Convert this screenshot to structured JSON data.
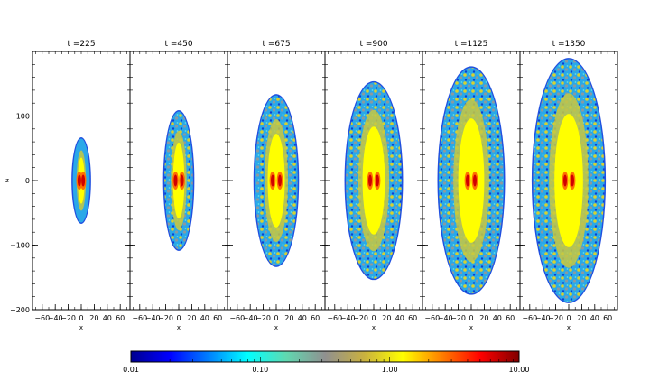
{
  "chart_data": {
    "type": "heatmap",
    "xlabel": "x",
    "ylabel": "z",
    "xlim": [
      -75,
      75
    ],
    "ylim": [
      -200,
      200
    ],
    "x_ticks": [
      "−60",
      "−40",
      "−20",
      "0",
      "20",
      "40",
      "60"
    ],
    "y_ticks": [
      "100",
      "0",
      "−100",
      "−200"
    ],
    "panels": [
      {
        "title": "t =225",
        "half_length": 65,
        "half_width": 13
      },
      {
        "title": "t =450",
        "half_length": 107,
        "half_width": 22
      },
      {
        "title": "t =675",
        "half_length": 132,
        "half_width": 33
      },
      {
        "title": "t =900",
        "half_length": 152,
        "half_width": 43
      },
      {
        "title": "t =1125",
        "half_length": 175,
        "half_width": 50
      },
      {
        "title": "t =1350",
        "half_length": 188,
        "half_width": 55
      }
    ],
    "colorbar": {
      "scale": "log",
      "range": [
        0.01,
        10.0
      ],
      "tick_labels": [
        "0.01",
        "0.10",
        "1.00",
        "10.00"
      ],
      "colormap": [
        "#00008f",
        "#0000ff",
        "#0080ff",
        "#00ffff",
        "#60d8b0",
        "#909090",
        "#c8b040",
        "#ffff00",
        "#ff8000",
        "#ff0000",
        "#800000"
      ]
    }
  }
}
